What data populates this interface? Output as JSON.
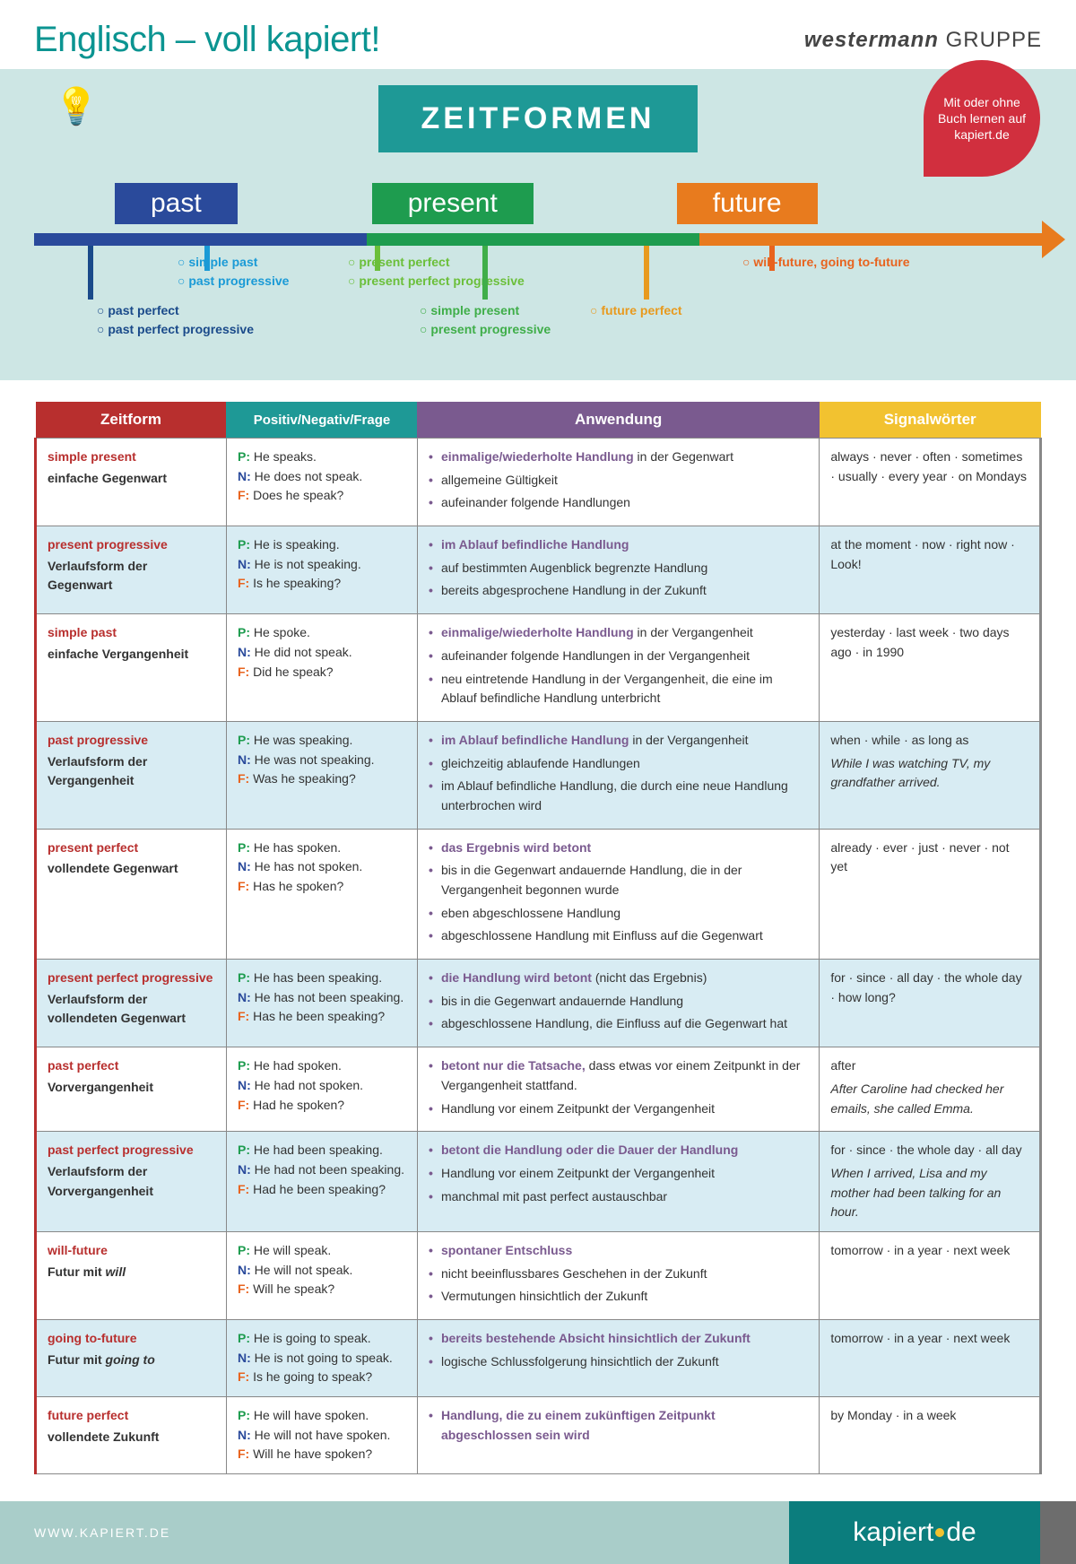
{
  "header": {
    "title": "Englisch – voll kapiert!",
    "brand_bold": "westermann",
    "brand_light": " GRUPPE"
  },
  "hero": {
    "box_title": "ZEITFORMEN",
    "badge": "Mit oder ohne Buch lernen auf kapiert.de",
    "labels": {
      "past": "past",
      "present": "present",
      "future": "future"
    },
    "ticks": {
      "past_perfect": "past perfect",
      "past_perfect_prog": "past perfect progressive",
      "simple_past": "simple past",
      "past_prog": "past progressive",
      "present_perfect": "present perfect",
      "present_perfect_prog": "present perfect progressive",
      "simple_present": "simple present",
      "present_prog": "present progressive",
      "future_perfect": "future perfect",
      "will_going": "will-future, going to-future"
    }
  },
  "table": {
    "headers": {
      "zeit": "Zeitform",
      "pnf": "Positiv/Negativ/Frage",
      "anw": "Anwendung",
      "sig": "Signalwörter"
    },
    "rows": [
      {
        "name": "simple present",
        "sub": "einfache Gegenwart",
        "p": "He speaks.",
        "n": "He does not speak.",
        "f": "Does he speak?",
        "anw": [
          {
            "b": "einmalige/wiederholte Handlung",
            "t": " in der Gegenwart"
          },
          {
            "t": "allgemeine Gültigkeit"
          },
          {
            "t": "aufeinander folgende Handlungen"
          }
        ],
        "sig": "always · never · often · sometimes · usually · every year · on Mondays"
      },
      {
        "name": "present progressive",
        "sub": "Verlaufsform der Gegenwart",
        "p": "He is speaking.",
        "n": "He is not speaking.",
        "f": "Is he speaking?",
        "anw": [
          {
            "b": "im Ablauf befindliche Handlung"
          },
          {
            "t": "auf bestimmten Augenblick begrenzte Handlung"
          },
          {
            "t": "bereits abgesprochene Handlung in der Zukunft"
          }
        ],
        "sig": "at the moment · now · right now · Look!"
      },
      {
        "name": "simple past",
        "sub": "einfache Vergangenheit",
        "p": "He spoke.",
        "n": "He did not speak.",
        "f": "Did he speak?",
        "anw": [
          {
            "b": "einmalige/wiederholte Handlung",
            "t": " in der Vergangenheit"
          },
          {
            "t": "aufeinander folgende Handlungen in der Vergangenheit"
          },
          {
            "t": "neu eintretende Handlung in der Vergangenheit, die eine im Ablauf befindliche Handlung unterbricht"
          }
        ],
        "sig": "yesterday · last week · two days ago · in 1990"
      },
      {
        "name": "past progressive",
        "sub": "Verlaufsform der Vergangenheit",
        "p": "He was speaking.",
        "n": "He was not speaking.",
        "f": "Was he speaking?",
        "anw": [
          {
            "b": "im Ablauf befindliche Handlung",
            "t": " in der Vergangenheit"
          },
          {
            "t": "gleichzeitig ablaufende Handlungen"
          },
          {
            "t": "im Ablauf befindliche Handlung, die durch eine neue Handlung unterbrochen wird"
          }
        ],
        "sig": "when · while · as long as",
        "sig_ital": "While I was watching TV, my grandfather arrived."
      },
      {
        "name": "present perfect",
        "sub": "vollendete Gegenwart",
        "p": "He has spoken.",
        "n": "He has not spoken.",
        "f": "Has he spoken?",
        "anw": [
          {
            "b": "das Ergebnis wird betont"
          },
          {
            "t": "bis in die Gegenwart andauernde Handlung, die in der Vergangenheit begonnen wurde"
          },
          {
            "t": "eben abgeschlossene Handlung"
          },
          {
            "t": "abgeschlossene Handlung mit Einfluss auf die Gegenwart"
          }
        ],
        "sig": "already · ever · just · never · not yet"
      },
      {
        "name": "present perfect progressive",
        "sub": "Verlaufsform der vollendeten Gegenwart",
        "p": "He has been speaking.",
        "n": "He has not been speaking.",
        "f": "Has he been speaking?",
        "anw": [
          {
            "b": "die Handlung wird betont",
            "t": " (nicht das Ergebnis)"
          },
          {
            "t": "bis in die Gegenwart andauernde Handlung"
          },
          {
            "t": "abgeschlossene Handlung, die Einfluss auf die Gegenwart hat"
          }
        ],
        "sig": "for · since · all day · the whole day · how long?"
      },
      {
        "name": "past perfect",
        "sub": "Vorvergangenheit",
        "p": "He had spoken.",
        "n": "He had not spoken.",
        "f": "Had he spoken?",
        "anw": [
          {
            "b": "betont nur die Tatsache,",
            "t": " dass etwas vor einem Zeitpunkt in der Vergangenheit stattfand."
          },
          {
            "t": "Handlung vor einem Zeitpunkt der Vergangenheit"
          }
        ],
        "sig": "after",
        "sig_ital": "After Caroline had checked her emails, she called Emma."
      },
      {
        "name": "past perfect progressive",
        "sub": "Verlaufsform der Vorvergangenheit",
        "p": "He had been speaking.",
        "n": "He had not been speaking.",
        "f": "Had he been speaking?",
        "anw": [
          {
            "b": "betont die Handlung oder die Dauer der Handlung"
          },
          {
            "t": "Handlung vor einem Zeitpunkt der Vergangenheit"
          },
          {
            "t": "manchmal mit past perfect austauschbar"
          }
        ],
        "sig": "for · since · the whole day · all day",
        "sig_ital": "When I arrived, Lisa and my mother had been talking for an hour."
      },
      {
        "name": "will-future",
        "sub_html": "Futur mit <i>will</i>",
        "p": "He will speak.",
        "n": "He will not speak.",
        "f": "Will he speak?",
        "anw": [
          {
            "b": "spontaner Entschluss"
          },
          {
            "t": "nicht beeinflussbares Geschehen in der Zukunft"
          },
          {
            "t": "Vermutungen hinsichtlich der Zukunft"
          }
        ],
        "sig": "tomorrow · in a year · next week"
      },
      {
        "name": "going to-future",
        "sub_html": "Futur mit <i>going to</i>",
        "p": "He is going to speak.",
        "n": "He is not going to speak.",
        "f": "Is he going to speak?",
        "anw": [
          {
            "b": "bereits bestehende Absicht hinsichtlich der Zukunft"
          },
          {
            "t": "logische Schlussfolgerung hinsichtlich der Zukunft"
          }
        ],
        "sig": "tomorrow · in a year · next week"
      },
      {
        "name": "future perfect",
        "sub": "vollendete Zukunft",
        "p": "He will have spoken.",
        "n": "He will not have spoken.",
        "f": "Will he have spoken?",
        "anw": [
          {
            "b": "Handlung, die zu einem zukünftigen Zeitpunkt abgeschlossen sein wird"
          }
        ],
        "sig": "by Monday · in a week"
      }
    ]
  },
  "footer": {
    "url": "WWW.KAPIERT.DE",
    "logo_a": "kapiert",
    "logo_b": "de"
  }
}
